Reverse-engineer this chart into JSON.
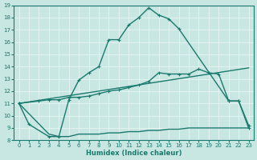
{
  "xlabel": "Humidex (Indice chaleur)",
  "xlim": [
    -0.5,
    23.5
  ],
  "ylim": [
    8,
    19
  ],
  "yticks": [
    8,
    9,
    10,
    11,
    12,
    13,
    14,
    15,
    16,
    17,
    18,
    19
  ],
  "xticks": [
    0,
    1,
    2,
    3,
    4,
    5,
    6,
    7,
    8,
    9,
    10,
    11,
    12,
    13,
    14,
    15,
    16,
    17,
    18,
    19,
    20,
    21,
    22,
    23
  ],
  "background_color": "#c8e6e2",
  "grid_color": "#e8f5f3",
  "line_color": "#1a7a6e",
  "line1": {
    "x": [
      0,
      1,
      3,
      4,
      5,
      6,
      7,
      8,
      9,
      10,
      11,
      12,
      13,
      14,
      15,
      16,
      21,
      22,
      23
    ],
    "y": [
      11,
      9.3,
      8.3,
      8.3,
      11.3,
      12.9,
      13.5,
      14.0,
      16.2,
      16.2,
      17.4,
      18.0,
      18.8,
      18.2,
      17.9,
      17.1,
      11.2,
      11.2,
      9.2
    ]
  },
  "line2": {
    "x": [
      0,
      2,
      3,
      4,
      5,
      6,
      7,
      8,
      9,
      10,
      11,
      12,
      13,
      14,
      15,
      16,
      17,
      18,
      19,
      20,
      21,
      22,
      23
    ],
    "y": [
      11,
      11.2,
      11.3,
      11.3,
      11.5,
      11.5,
      11.6,
      11.8,
      12.0,
      12.1,
      12.3,
      12.5,
      12.8,
      13.5,
      13.4,
      13.4,
      13.4,
      13.8,
      13.5,
      13.4,
      11.2,
      11.2,
      9.0
    ]
  },
  "line3": {
    "x": [
      0,
      23
    ],
    "y": [
      11,
      13.9
    ]
  },
  "line4": {
    "x": [
      0,
      3,
      4,
      5,
      6,
      7,
      8,
      9,
      10,
      11,
      12,
      13,
      14,
      15,
      16,
      17,
      18,
      19,
      20,
      21,
      22,
      23
    ],
    "y": [
      11,
      8.5,
      8.3,
      8.3,
      8.5,
      8.5,
      8.5,
      8.6,
      8.6,
      8.7,
      8.7,
      8.8,
      8.8,
      8.9,
      8.9,
      9.0,
      9.0,
      9.0,
      9.0,
      9.0,
      9.0,
      9.0
    ]
  }
}
